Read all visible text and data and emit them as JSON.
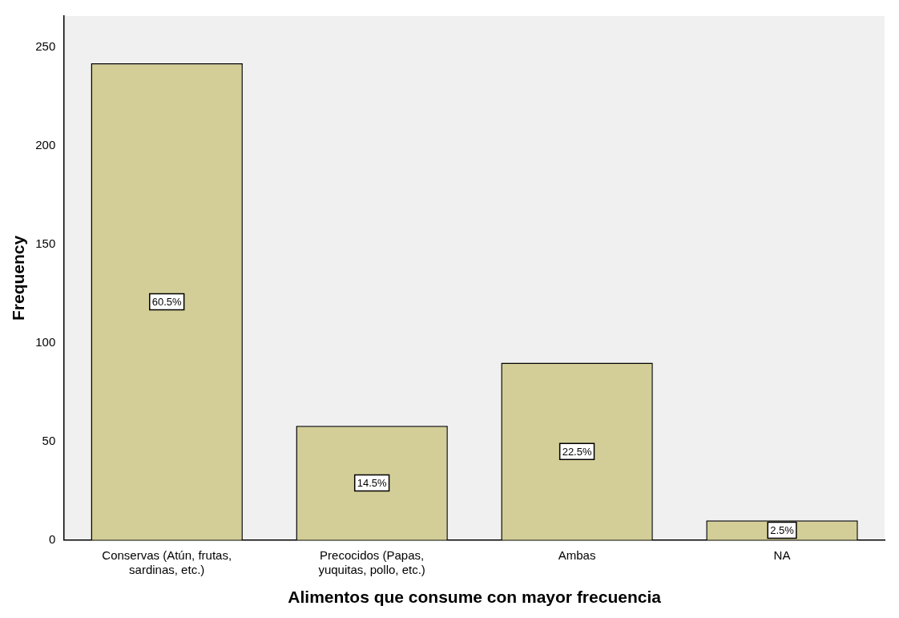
{
  "chart_data": {
    "type": "bar",
    "xlabel": "Alimentos que consume con mayor frecuencia",
    "ylabel": "Frequency",
    "categories": [
      "Conservas (Atún, frutas, sardinas, etc.)",
      "Precocidos (Papas, yuquitas, pollo, etc.)",
      "Ambas",
      "NA"
    ],
    "values": [
      242,
      58,
      90,
      10
    ],
    "color": "#d3ce97",
    "annotations": [
      {
        "text": "60.5%",
        "x": "Conservas (Atún, frutas, sardinas, etc.)",
        "y": 121
      },
      {
        "text": "14.5%",
        "x": "Precocidos (Papas, yuquitas, pollo, etc.)",
        "y": 29
      },
      {
        "text": "22.5%",
        "x": "Ambas",
        "y": 45
      },
      {
        "text": "2.5%",
        "x": "NA",
        "y": 5
      }
    ],
    "ylim": [
      0,
      266
    ],
    "yticks": [
      0,
      50,
      100,
      150,
      200,
      250
    ],
    "grid": false,
    "legend": false
  }
}
